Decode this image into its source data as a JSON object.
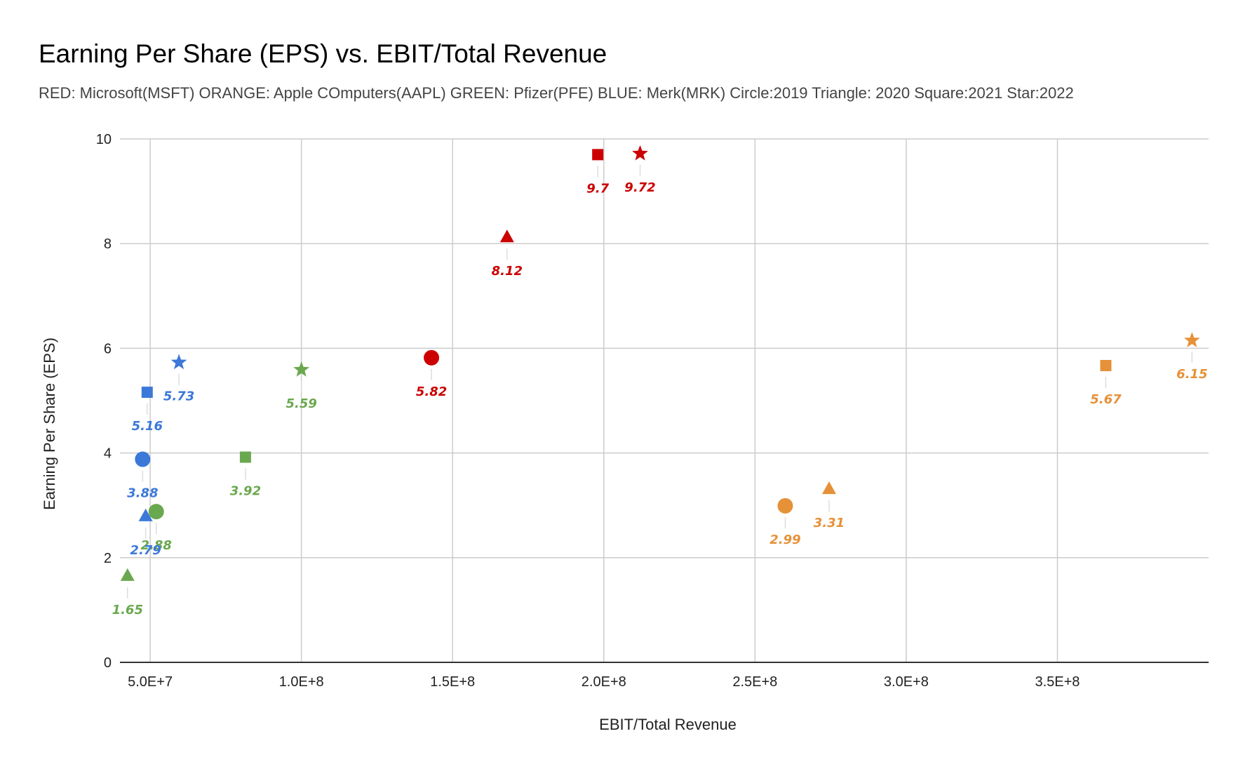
{
  "chart_data": {
    "type": "scatter",
    "title": "Earning Per Share (EPS) vs. EBIT/Total Revenue",
    "subtitle": "RED: Microsoft(MSFT) ORANGE: Apple COmputers(AAPL) GREEN: Pfizer(PFE) BLUE: Merk(MRK)   Circle:2019  Triangle: 2020  Square:2021  Star:2022",
    "xlabel": "EBIT/Total Revenue",
    "ylabel": "Earning Per Share (EPS)",
    "xlim": [
      40000000,
      400000000
    ],
    "ylim": [
      0,
      10
    ],
    "x_ticks": [
      {
        "value": 50000000,
        "label": "5.0E+7"
      },
      {
        "value": 100000000,
        "label": "1.0E+8"
      },
      {
        "value": 150000000,
        "label": "1.5E+8"
      },
      {
        "value": 200000000,
        "label": "2.0E+8"
      },
      {
        "value": 250000000,
        "label": "2.5E+8"
      },
      {
        "value": 300000000,
        "label": "3.0E+8"
      },
      {
        "value": 350000000,
        "label": "3.5E+8"
      }
    ],
    "y_ticks": [
      {
        "value": 0,
        "label": "0"
      },
      {
        "value": 2,
        "label": "2"
      },
      {
        "value": 4,
        "label": "4"
      },
      {
        "value": 6,
        "label": "6"
      },
      {
        "value": 8,
        "label": "8"
      },
      {
        "value": 10,
        "label": "10"
      }
    ],
    "grid": true,
    "colors": {
      "red": "#cc0000",
      "orange": "#e69138",
      "green": "#6aa84f",
      "blue": "#3c78d8"
    },
    "points": [
      {
        "color": "red",
        "marker": "circle",
        "x": 143000000,
        "y": 5.82,
        "label": "5.82"
      },
      {
        "color": "red",
        "marker": "triangle",
        "x": 168000000,
        "y": 8.12,
        "label": "8.12"
      },
      {
        "color": "red",
        "marker": "square",
        "x": 198000000,
        "y": 9.7,
        "label": "9.7"
      },
      {
        "color": "red",
        "marker": "star",
        "x": 212000000,
        "y": 9.72,
        "label": "9.72"
      },
      {
        "color": "orange",
        "marker": "circle",
        "x": 260000000,
        "y": 2.99,
        "label": "2.99"
      },
      {
        "color": "orange",
        "marker": "triangle",
        "x": 274500000,
        "y": 3.31,
        "label": "3.31"
      },
      {
        "color": "orange",
        "marker": "square",
        "x": 366000000,
        "y": 5.67,
        "label": "5.67"
      },
      {
        "color": "orange",
        "marker": "star",
        "x": 394500000,
        "y": 6.15,
        "label": "6.15"
      },
      {
        "color": "green",
        "marker": "circle",
        "x": 52000000,
        "y": 2.88,
        "label": "2.88"
      },
      {
        "color": "green",
        "marker": "triangle",
        "x": 42500000,
        "y": 1.65,
        "label": "1.65"
      },
      {
        "color": "green",
        "marker": "square",
        "x": 81500000,
        "y": 3.92,
        "label": "3.92"
      },
      {
        "color": "green",
        "marker": "star",
        "x": 100000000,
        "y": 5.59,
        "label": "5.59"
      },
      {
        "color": "blue",
        "marker": "circle",
        "x": 47500000,
        "y": 3.88,
        "label": "3.88"
      },
      {
        "color": "blue",
        "marker": "triangle",
        "x": 48500000,
        "y": 2.79,
        "label": "2.79"
      },
      {
        "color": "blue",
        "marker": "square",
        "x": 49000000,
        "y": 5.16,
        "label": "5.16"
      },
      {
        "color": "blue",
        "marker": "star",
        "x": 59500000,
        "y": 5.73,
        "label": "5.73"
      }
    ]
  }
}
